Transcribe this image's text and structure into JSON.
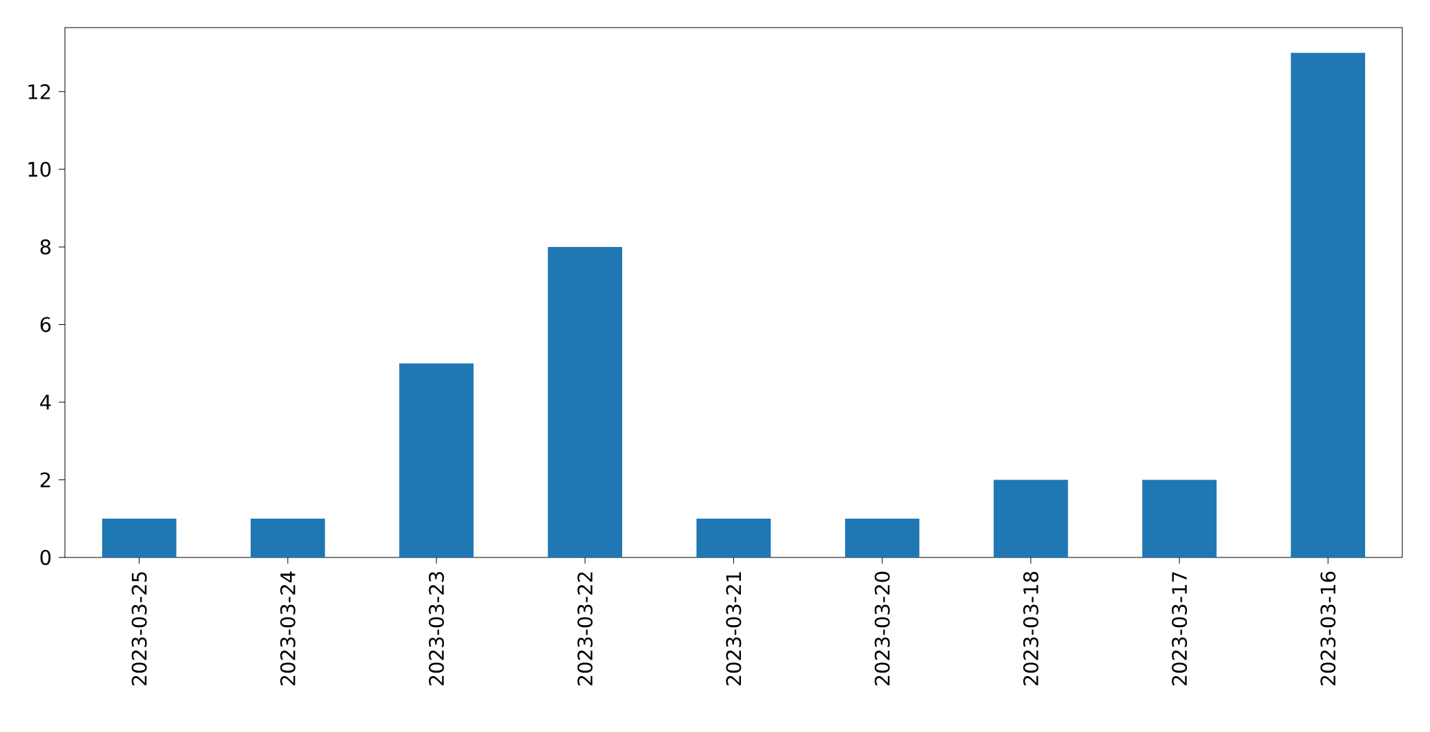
{
  "chart_data": {
    "type": "bar",
    "categories": [
      "2023-03-25",
      "2023-03-24",
      "2023-03-23",
      "2023-03-22",
      "2023-03-21",
      "2023-03-20",
      "2023-03-18",
      "2023-03-17",
      "2023-03-16"
    ],
    "values": [
      1,
      1,
      5,
      8,
      1,
      1,
      2,
      2,
      13
    ],
    "color": "#1f77b4",
    "ylim": [
      0,
      13.65
    ],
    "yticks": [
      0,
      2,
      4,
      6,
      8,
      10,
      12
    ]
  }
}
